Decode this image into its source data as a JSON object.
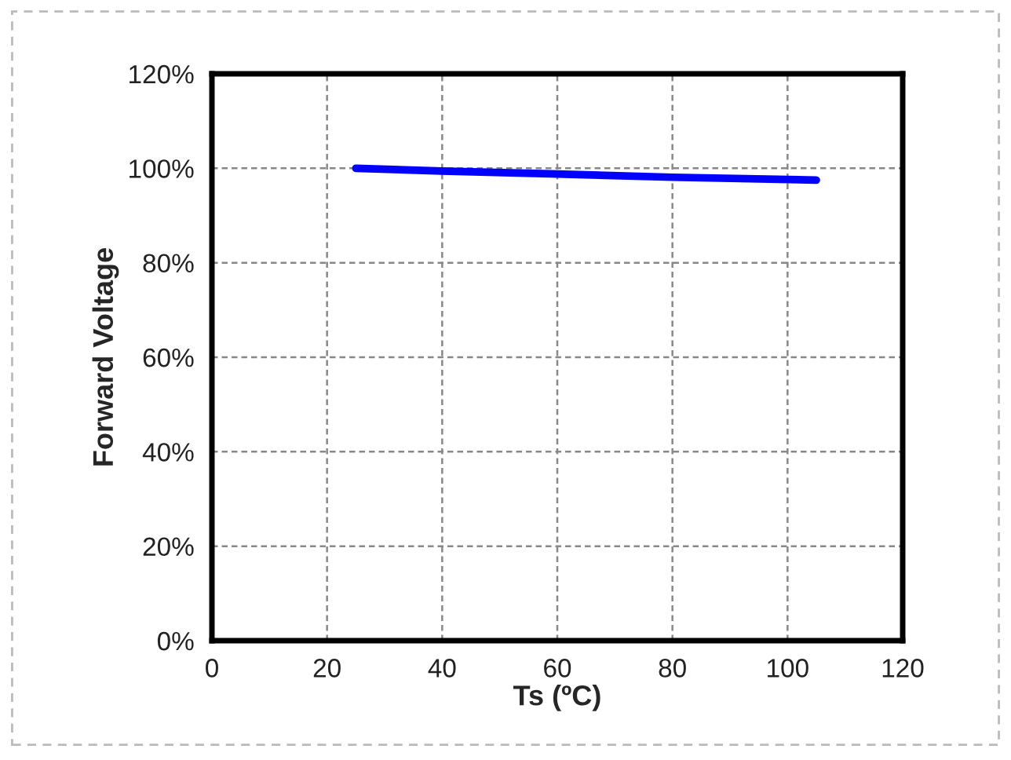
{
  "chart_data": {
    "type": "line",
    "xlabel": "Ts (ºC)",
    "ylabel": "Forward Voltage",
    "x": [
      25,
      40,
      60,
      80,
      105
    ],
    "series": [
      {
        "color": "#0000ff",
        "values": [
          100,
          99.4,
          98.8,
          98.1,
          97.5
        ]
      }
    ],
    "xlim": [
      0,
      120
    ],
    "xticks": [
      0,
      20,
      40,
      60,
      80,
      100,
      120
    ],
    "ylim": [
      0,
      120
    ],
    "yticks": [
      {
        "value": 0,
        "label": "0%"
      },
      {
        "value": 20,
        "label": "20%"
      },
      {
        "value": 40,
        "label": "40%"
      },
      {
        "value": 60,
        "label": "60%"
      },
      {
        "value": 80,
        "label": "80%"
      },
      {
        "value": 100,
        "label": "100%"
      },
      {
        "value": 120,
        "label": "120%"
      }
    ],
    "grid": true,
    "marker": "none",
    "line_style": "solid"
  }
}
